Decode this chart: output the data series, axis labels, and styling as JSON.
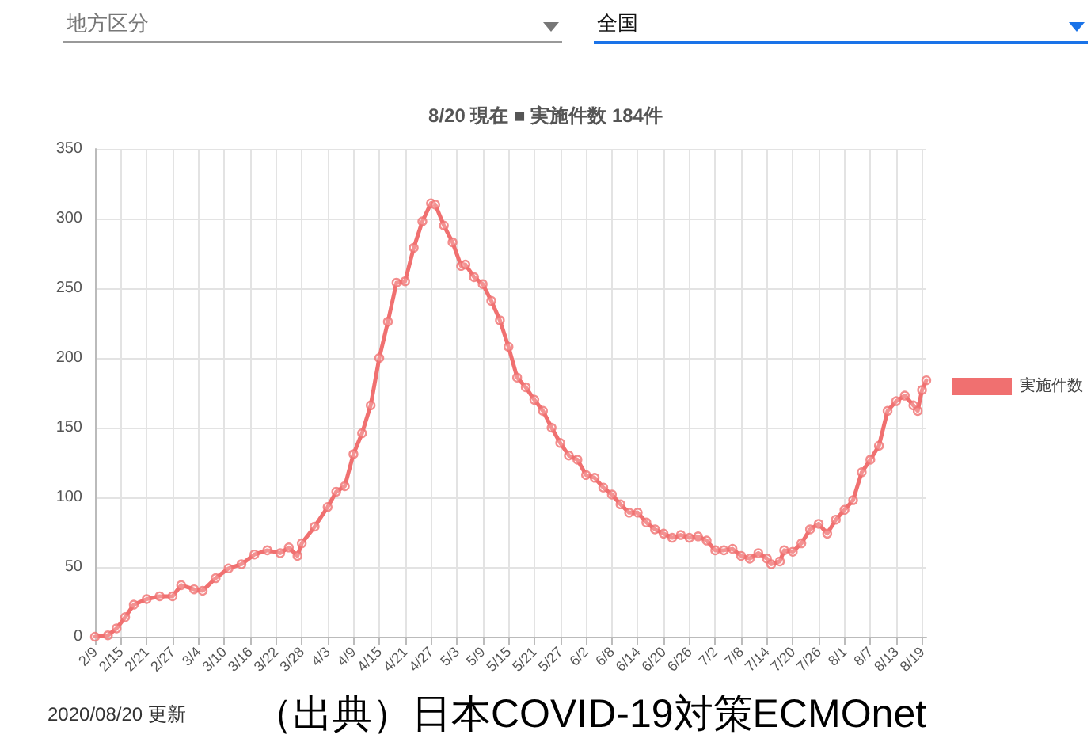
{
  "chart_data": {
    "type": "line",
    "title": "8/20 現在 ■ 実施件数 184件",
    "annotations": [
      "地方区分",
      "全国",
      "2020/08/20 更新",
      "（出典）日本COVID-19対策ECMOnet"
    ],
    "x": [
      "--02-09",
      "--02-12",
      "--02-14",
      "--02-16",
      "--02-18",
      "--02-21",
      "--02-24",
      "--02-27",
      "--02-29",
      "--03-03",
      "--03-05",
      "--03-08",
      "--03-11",
      "--03-14",
      "--03-17",
      "--03-20",
      "--03-23",
      "--03-25",
      "--03-27",
      "--03-28",
      "--03-31",
      "--04-03",
      "--04-05",
      "--04-07",
      "--04-09",
      "--04-11",
      "--04-13",
      "--04-15",
      "--04-17",
      "--04-19",
      "--04-21",
      "--04-23",
      "--04-25",
      "--04-27",
      "--04-28",
      "--04-30",
      "--05-02",
      "--05-04",
      "--05-05",
      "--05-07",
      "--05-09",
      "--05-11",
      "--05-13",
      "--05-15",
      "--05-17",
      "--05-19",
      "--05-21",
      "--05-23",
      "--05-25",
      "--05-27",
      "--05-29",
      "--05-31",
      "--06-02",
      "--06-04",
      "--06-06",
      "--06-08",
      "--06-10",
      "--06-12",
      "--06-14",
      "--06-16",
      "--06-18",
      "--06-20",
      "--06-22",
      "--06-24",
      "--06-26",
      "--06-28",
      "--06-30",
      "--07-02",
      "--07-04",
      "--07-06",
      "--07-08",
      "--07-10",
      "--07-12",
      "--07-14",
      "--07-15",
      "--07-17",
      "--07-18",
      "--07-20",
      "--07-22",
      "--07-24",
      "--07-26",
      "--07-28",
      "--07-30",
      "--08-01",
      "--08-03",
      "--08-05",
      "--08-07",
      "--08-09",
      "--08-11",
      "--08-13",
      "--08-15",
      "--08-17",
      "--08-18",
      "--08-19",
      "--08-20"
    ],
    "series": [
      {
        "name": "実施件数",
        "color": "#f07070",
        "values": [
          0,
          1,
          6,
          14,
          23,
          27,
          29,
          29,
          37,
          34,
          33,
          42,
          49,
          52,
          59,
          62,
          60,
          64,
          58,
          67,
          79,
          93,
          104,
          108,
          131,
          146,
          166,
          200,
          226,
          254,
          255,
          279,
          298,
          311,
          310,
          295,
          283,
          266,
          267,
          258,
          253,
          241,
          227,
          208,
          186,
          179,
          170,
          162,
          150,
          139,
          130,
          127,
          116,
          114,
          107,
          102,
          95,
          89,
          89,
          82,
          77,
          74,
          71,
          73,
          71,
          72,
          69,
          62,
          62,
          63,
          58,
          56,
          60,
          56,
          52,
          54,
          62,
          61,
          67,
          77,
          81,
          74,
          84,
          91,
          98,
          118,
          127,
          137,
          162,
          169,
          173,
          166,
          162,
          177,
          184
        ]
      }
    ],
    "xlim": [
      "--02-09",
      "--08-20"
    ],
    "xticks": [
      {
        "value": "--02-09",
        "label": "2/9"
      },
      {
        "value": "--02-15",
        "label": "2/15"
      },
      {
        "value": "--02-21",
        "label": "2/21"
      },
      {
        "value": "--02-27",
        "label": "2/27"
      },
      {
        "value": "--03-04",
        "label": "3/4"
      },
      {
        "value": "--03-10",
        "label": "3/10"
      },
      {
        "value": "--03-16",
        "label": "3/16"
      },
      {
        "value": "--03-22",
        "label": "3/22"
      },
      {
        "value": "--03-28",
        "label": "3/28"
      },
      {
        "value": "--04-03",
        "label": "4/3"
      },
      {
        "value": "--04-09",
        "label": "4/9"
      },
      {
        "value": "--04-15",
        "label": "4/15"
      },
      {
        "value": "--04-21",
        "label": "4/21"
      },
      {
        "value": "--04-27",
        "label": "4/27"
      },
      {
        "value": "--05-03",
        "label": "5/3"
      },
      {
        "value": "--05-09",
        "label": "5/9"
      },
      {
        "value": "--05-15",
        "label": "5/15"
      },
      {
        "value": "--05-21",
        "label": "5/21"
      },
      {
        "value": "--05-27",
        "label": "5/27"
      },
      {
        "value": "--06-02",
        "label": "6/2"
      },
      {
        "value": "--06-08",
        "label": "6/8"
      },
      {
        "value": "--06-14",
        "label": "6/14"
      },
      {
        "value": "--06-20",
        "label": "6/20"
      },
      {
        "value": "--06-26",
        "label": "6/26"
      },
      {
        "value": "--07-02",
        "label": "7/2"
      },
      {
        "value": "--07-08",
        "label": "7/8"
      },
      {
        "value": "--07-14",
        "label": "7/14"
      },
      {
        "value": "--07-20",
        "label": "7/20"
      },
      {
        "value": "--07-26",
        "label": "7/26"
      },
      {
        "value": "--08-01",
        "label": "8/1"
      },
      {
        "value": "--08-07",
        "label": "8/7"
      },
      {
        "value": "--08-13",
        "label": "8/13"
      },
      {
        "value": "--08-19",
        "label": "8/19"
      }
    ],
    "ylim": [
      0,
      350
    ],
    "yticks": [
      0,
      50,
      100,
      150,
      200,
      250,
      300,
      350
    ],
    "grid": true,
    "legend": "right",
    "marker": "circle",
    "line_style": "solid"
  }
}
